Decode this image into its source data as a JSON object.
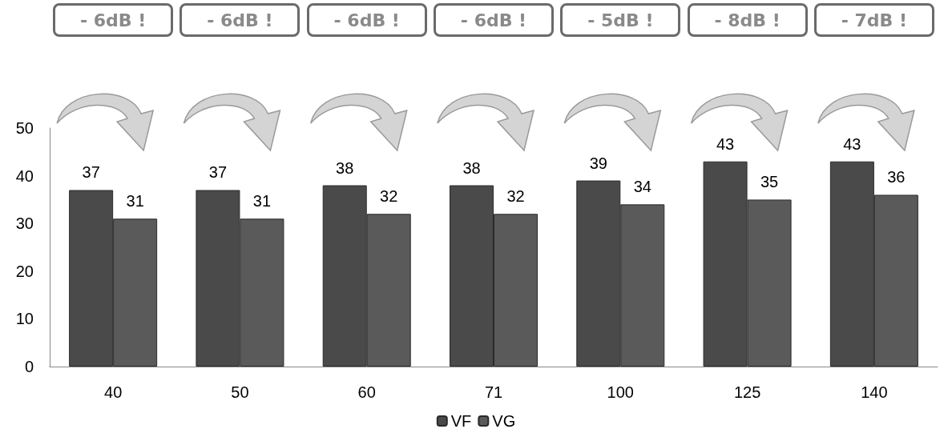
{
  "chart_data": {
    "type": "bar",
    "categories": [
      "40",
      "50",
      "60",
      "71",
      "100",
      "125",
      "140"
    ],
    "series": [
      {
        "name": "VF",
        "color": "#4a4a4a",
        "values": [
          37,
          37,
          38,
          38,
          39,
          43,
          43
        ]
      },
      {
        "name": "VG",
        "color": "#5a5a5a",
        "values": [
          31,
          31,
          32,
          32,
          34,
          35,
          36
        ]
      }
    ],
    "ylim": [
      0,
      50
    ],
    "yticks": [
      0,
      10,
      20,
      30,
      40,
      50
    ],
    "data_labels": true,
    "grid": false,
    "legend": "bottom",
    "annotations": [
      "- 6dB !",
      "- 6dB !",
      "- 6dB !",
      "- 6dB !",
      "- 5dB !",
      "- 8dB !",
      "- 7dB !"
    ]
  }
}
